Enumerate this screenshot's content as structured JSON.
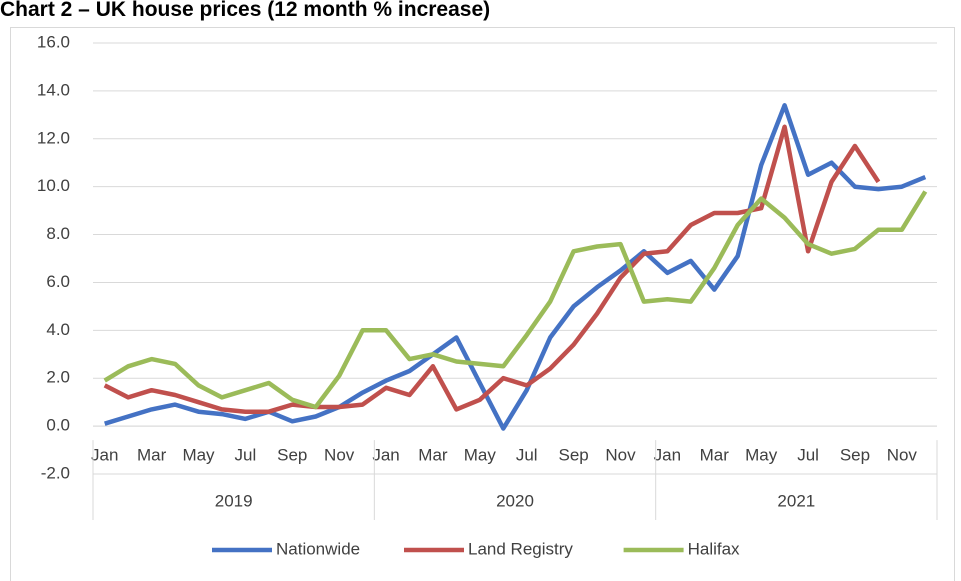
{
  "chart_data": {
    "type": "line",
    "title": "Chart 2 – UK house prices (12 month % increase)",
    "categories": [
      "Jan",
      null,
      "Mar",
      null,
      "May",
      null,
      "Jul",
      null,
      "Sep",
      null,
      "Nov",
      null,
      "Jan",
      null,
      "Mar",
      null,
      "May",
      null,
      "Jul",
      null,
      "Sep",
      null,
      "Nov",
      null,
      "Jan",
      null,
      "Mar",
      null,
      "May",
      null,
      "Jul",
      null,
      "Sep",
      null,
      "Nov",
      null
    ],
    "years": [
      "2019",
      "2020",
      "2021"
    ],
    "series": [
      {
        "name": "Nationwide",
        "color": "#4472c4",
        "values": [
          0.1,
          0.4,
          0.7,
          0.9,
          0.6,
          0.5,
          0.3,
          0.6,
          0.2,
          0.4,
          0.8,
          1.4,
          1.9,
          2.3,
          3.0,
          3.7,
          1.8,
          -0.1,
          1.5,
          3.7,
          5.0,
          5.8,
          6.5,
          7.3,
          6.4,
          6.9,
          5.7,
          7.1,
          10.9,
          13.4,
          10.5,
          11.0,
          10.0,
          9.9,
          10.0,
          10.4
        ]
      },
      {
        "name": "Land Registry",
        "color": "#c0504d",
        "values": [
          1.7,
          1.2,
          1.5,
          1.3,
          1.0,
          0.7,
          0.6,
          0.6,
          0.9,
          0.8,
          0.8,
          0.9,
          1.6,
          1.3,
          2.5,
          0.7,
          1.1,
          2.0,
          1.7,
          2.4,
          3.4,
          4.7,
          6.2,
          7.2,
          7.3,
          8.4,
          8.9,
          8.9,
          9.1,
          12.5,
          7.3,
          10.2,
          11.7,
          10.2,
          null,
          null
        ]
      },
      {
        "name": "Halifax",
        "color": "#9bbb59",
        "values": [
          1.9,
          2.5,
          2.8,
          2.6,
          1.7,
          1.2,
          1.5,
          1.8,
          1.1,
          0.8,
          2.1,
          4.0,
          4.0,
          2.8,
          3.0,
          2.7,
          2.6,
          2.5,
          3.8,
          5.2,
          7.3,
          7.5,
          7.6,
          5.2,
          5.3,
          5.2,
          6.6,
          8.4,
          9.5,
          8.7,
          7.6,
          7.2,
          7.4,
          8.2,
          8.2,
          9.8
        ]
      }
    ],
    "ylim": [
      -2,
      16
    ],
    "yticks": [
      {
        "value": -2,
        "label": "-2.0"
      },
      {
        "value": 0,
        "label": "0.0"
      },
      {
        "value": 2,
        "label": "2.0"
      },
      {
        "value": 4,
        "label": "4.0"
      },
      {
        "value": 6,
        "label": "6.0"
      },
      {
        "value": 8,
        "label": "8.0"
      },
      {
        "value": 10,
        "label": "10.0"
      },
      {
        "value": 12,
        "label": "12.0"
      },
      {
        "value": 14,
        "label": "14.0"
      },
      {
        "value": 16,
        "label": "16.0"
      }
    ],
    "grid": true,
    "legend": "bottom"
  }
}
